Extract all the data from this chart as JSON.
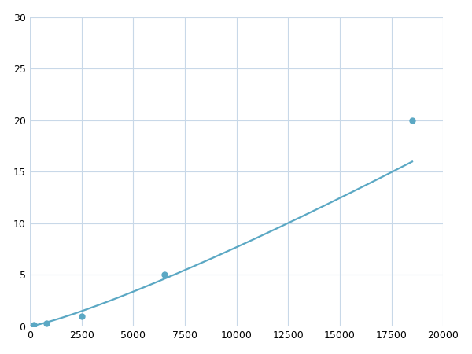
{
  "x_data": [
    200,
    800,
    2500,
    6500,
    18500
  ],
  "y_data": [
    0.1,
    0.3,
    1.0,
    5.0,
    20.0
  ],
  "xlim": [
    0,
    20000
  ],
  "ylim": [
    0,
    30
  ],
  "xticks": [
    0,
    2500,
    5000,
    7500,
    10000,
    12500,
    15000,
    17500,
    20000
  ],
  "yticks": [
    0,
    5,
    10,
    15,
    20,
    25,
    30
  ],
  "line_color": "#5ba8c4",
  "marker_color": "#5ba8c4",
  "marker_size": 5,
  "line_width": 1.6,
  "background_color": "#ffffff",
  "grid_color": "#c8d8e8",
  "tick_label_fontsize": 9,
  "xtick_labels": [
    "0",
    "2500",
    "5000",
    "7500",
    "10000",
    "12500",
    "15000",
    "17500",
    "20000"
  ],
  "ytick_labels": [
    "0",
    "5",
    "10",
    "15",
    "20",
    "25",
    "30"
  ]
}
